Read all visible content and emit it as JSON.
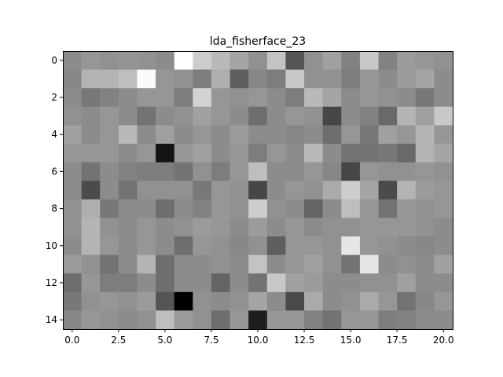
{
  "chart_data": {
    "type": "heatmap",
    "title": "lda_fisherface_23",
    "colormap": "gray",
    "xlim": [
      -0.5,
      20.5
    ],
    "ylim": [
      14.5,
      -0.5
    ],
    "x_ticks": [
      0.0,
      2.5,
      5.0,
      7.5,
      10.0,
      12.5,
      15.0,
      17.5,
      20.0
    ],
    "x_tick_labels": [
      "0.0",
      "2.5",
      "5.0",
      "7.5",
      "10.0",
      "12.5",
      "15.0",
      "17.5",
      "20.0"
    ],
    "y_ticks": [
      0,
      2,
      4,
      6,
      8,
      10,
      12,
      14
    ],
    "y_tick_labels": [
      "0",
      "2",
      "4",
      "6",
      "8",
      "10",
      "12",
      "14"
    ],
    "grid": false,
    "values": [
      [
        140,
        150,
        145,
        148,
        145,
        140,
        255,
        205,
        185,
        165,
        145,
        195,
        85,
        145,
        160,
        130,
        200,
        130,
        155,
        150,
        145
      ],
      [
        135,
        180,
        180,
        190,
        250,
        150,
        145,
        125,
        175,
        95,
        135,
        125,
        200,
        145,
        145,
        125,
        150,
        140,
        155,
        165,
        140
      ],
      [
        140,
        120,
        130,
        140,
        150,
        150,
        125,
        210,
        150,
        145,
        150,
        140,
        125,
        185,
        165,
        140,
        150,
        145,
        140,
        120,
        140
      ],
      [
        145,
        140,
        150,
        140,
        115,
        140,
        145,
        160,
        150,
        140,
        110,
        140,
        150,
        145,
        70,
        140,
        130,
        105,
        180,
        160,
        200
      ],
      [
        160,
        140,
        150,
        185,
        140,
        160,
        140,
        150,
        140,
        155,
        140,
        140,
        135,
        140,
        110,
        150,
        120,
        160,
        150,
        180,
        150
      ],
      [
        150,
        150,
        150,
        140,
        150,
        20,
        150,
        160,
        140,
        150,
        125,
        150,
        140,
        185,
        140,
        115,
        115,
        120,
        105,
        180,
        165
      ],
      [
        140,
        115,
        140,
        130,
        125,
        125,
        115,
        145,
        125,
        150,
        190,
        140,
        140,
        150,
        135,
        70,
        150,
        145,
        145,
        150,
        145
      ],
      [
        140,
        75,
        140,
        115,
        145,
        145,
        145,
        120,
        150,
        145,
        70,
        140,
        150,
        145,
        170,
        205,
        165,
        75,
        180,
        155,
        150
      ],
      [
        145,
        175,
        120,
        140,
        140,
        110,
        140,
        130,
        150,
        145,
        205,
        145,
        140,
        100,
        140,
        190,
        150,
        115,
        150,
        145,
        150
      ],
      [
        145,
        180,
        145,
        140,
        150,
        140,
        145,
        155,
        150,
        140,
        155,
        140,
        150,
        140,
        145,
        145,
        150,
        150,
        150,
        145,
        140
      ],
      [
        140,
        180,
        150,
        140,
        150,
        140,
        110,
        150,
        145,
        135,
        145,
        95,
        150,
        150,
        145,
        230,
        150,
        145,
        140,
        135,
        140
      ],
      [
        155,
        145,
        115,
        140,
        180,
        110,
        140,
        140,
        145,
        140,
        195,
        140,
        150,
        160,
        145,
        115,
        230,
        140,
        145,
        140,
        160
      ],
      [
        110,
        150,
        125,
        125,
        140,
        110,
        140,
        140,
        100,
        140,
        115,
        200,
        160,
        155,
        140,
        140,
        145,
        145,
        160,
        140,
        140
      ],
      [
        120,
        145,
        150,
        145,
        155,
        85,
        0,
        145,
        140,
        145,
        165,
        140,
        75,
        170,
        140,
        145,
        170,
        150,
        115,
        135,
        150
      ],
      [
        135,
        150,
        145,
        140,
        145,
        190,
        155,
        145,
        110,
        150,
        30,
        150,
        150,
        130,
        115,
        150,
        150,
        125,
        130,
        140,
        140
      ]
    ]
  }
}
